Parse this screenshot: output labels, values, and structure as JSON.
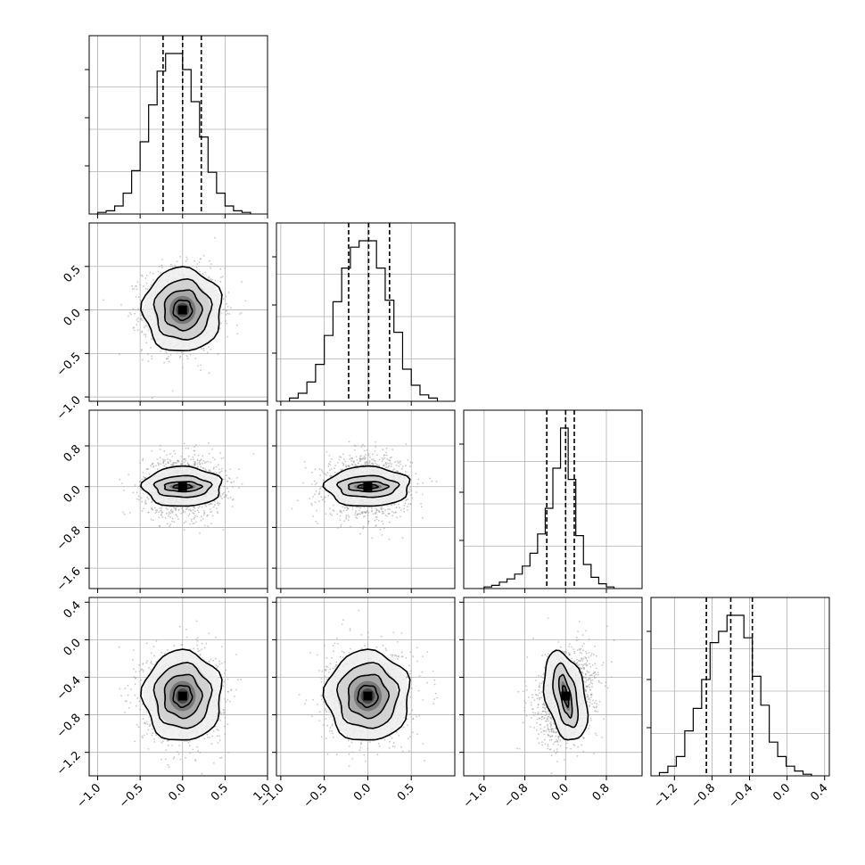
{
  "chart_data": {
    "type": "corner",
    "grid": true,
    "parameters": [
      "",
      "",
      "",
      ""
    ],
    "marginals": [
      {
        "range": [
          -1.1,
          1.0
        ],
        "quantiles": [
          -0.23,
          0.0,
          0.22
        ],
        "bin_edges": [
          -1.0,
          -0.9,
          -0.8,
          -0.7,
          -0.6,
          -0.5,
          -0.4,
          -0.3,
          -0.2,
          -0.1,
          0.0,
          0.1,
          0.2,
          0.3,
          0.4,
          0.5,
          0.6,
          0.7,
          0.8
        ],
        "relative_heights": [
          0.01,
          0.02,
          0.05,
          0.13,
          0.27,
          0.45,
          0.68,
          0.89,
          1.0,
          1.0,
          0.9,
          0.7,
          0.48,
          0.26,
          0.13,
          0.05,
          0.02,
          0.01
        ]
      },
      {
        "range": [
          -1.05,
          1.0
        ],
        "quantiles": [
          -0.22,
          0.01,
          0.25
        ],
        "bin_edges": [
          -0.9,
          -0.8,
          -0.7,
          -0.6,
          -0.5,
          -0.4,
          -0.3,
          -0.2,
          -0.1,
          0.0,
          0.1,
          0.2,
          0.3,
          0.4,
          0.5,
          0.6,
          0.7,
          0.8
        ],
        "relative_heights": [
          0.02,
          0.05,
          0.12,
          0.23,
          0.41,
          0.62,
          0.83,
          0.96,
          1.0,
          1.0,
          0.83,
          0.63,
          0.43,
          0.2,
          0.1,
          0.04,
          0.02
        ]
      },
      {
        "range": [
          -2.0,
          1.5
        ],
        "quantiles": [
          -0.37,
          0.0,
          0.17
        ],
        "bin_edges": [
          -1.6,
          -1.45,
          -1.3,
          -1.15,
          -1.0,
          -0.85,
          -0.7,
          -0.55,
          -0.4,
          -0.25,
          -0.1,
          0.05,
          0.2,
          0.35,
          0.5,
          0.65,
          0.8,
          0.95
        ],
        "relative_heights": [
          0.01,
          0.02,
          0.04,
          0.06,
          0.09,
          0.14,
          0.22,
          0.34,
          0.5,
          0.75,
          1.0,
          0.68,
          0.33,
          0.15,
          0.07,
          0.03,
          0.01
        ]
      },
      {
        "range": [
          -1.45,
          0.45
        ],
        "quantiles": [
          -0.86,
          -0.6,
          -0.37
        ],
        "bin_edges": [
          -1.36,
          -1.27,
          -1.18,
          -1.09,
          -1.0,
          -0.91,
          -0.82,
          -0.73,
          -0.64,
          -0.55,
          -0.46,
          -0.37,
          -0.28,
          -0.19,
          -0.1,
          -0.01,
          0.08,
          0.17,
          0.26
        ],
        "relative_heights": [
          0.02,
          0.06,
          0.12,
          0.28,
          0.42,
          0.6,
          0.83,
          0.9,
          1.0,
          1.0,
          0.86,
          0.62,
          0.44,
          0.21,
          0.12,
          0.06,
          0.03,
          0.01
        ]
      }
    ],
    "ticks": [
      {
        "values": [
          -1.0,
          -0.5,
          0.0,
          0.5,
          1.0
        ],
        "labels": [
          "−1.0",
          "−0.5",
          "0.0",
          "0.5",
          "1.0"
        ]
      },
      {
        "values": [
          -1.0,
          -0.5,
          0.0,
          0.5
        ],
        "labels": [
          "−1.0",
          "−0.5",
          "0.0",
          "0.5"
        ]
      },
      {
        "values": [
          -1.6,
          -0.8,
          0.0,
          0.8
        ],
        "labels": [
          "−1.6",
          "−0.8",
          "0.0",
          "0.8"
        ]
      },
      {
        "values": [
          -1.2,
          -0.8,
          -0.4,
          0.0,
          0.4
        ],
        "labels": [
          "−1.2",
          "−0.8",
          "−0.4",
          "0.0",
          "0.4"
        ]
      }
    ],
    "pairs": [
      {
        "i": 1,
        "j": 0,
        "mean": [
          0.0,
          0.0
        ],
        "sd": [
          0.22,
          0.23
        ],
        "rho": 0.0,
        "contour_sd": [
          [
            0.5,
            0.5
          ],
          [
            1.0,
            1.0
          ],
          [
            1.5,
            1.5
          ],
          [
            2.1,
            2.1
          ]
        ]
      },
      {
        "i": 2,
        "j": 0,
        "mean": [
          0.0,
          0.0
        ],
        "sd": [
          0.22,
          0.28
        ],
        "rho": 0.0,
        "contour_sd": [
          [
            0.5,
            0.15
          ],
          [
            1.0,
            0.35
          ],
          [
            1.5,
            0.75
          ],
          [
            2.1,
            1.4
          ]
        ]
      },
      {
        "i": 2,
        "j": 1,
        "mean": [
          0.0,
          0.0
        ],
        "sd": [
          0.23,
          0.28
        ],
        "rho": 0.0,
        "contour_sd": [
          [
            0.5,
            0.15
          ],
          [
            1.0,
            0.35
          ],
          [
            1.5,
            0.75
          ],
          [
            2.1,
            1.4
          ]
        ]
      },
      {
        "i": 3,
        "j": 0,
        "mean": [
          0.0,
          -0.6
        ],
        "sd": [
          0.22,
          0.23
        ],
        "rho": 0.0,
        "contour_sd": [
          [
            0.5,
            0.5
          ],
          [
            1.0,
            1.0
          ],
          [
            1.5,
            1.5
          ],
          [
            2.1,
            2.1
          ]
        ]
      },
      {
        "i": 3,
        "j": 1,
        "mean": [
          0.0,
          -0.6
        ],
        "sd": [
          0.23,
          0.23
        ],
        "rho": 0.0,
        "contour_sd": [
          [
            0.5,
            0.5
          ],
          [
            1.0,
            1.0
          ],
          [
            1.5,
            1.5
          ],
          [
            2.1,
            2.1
          ]
        ]
      },
      {
        "i": 3,
        "j": 2,
        "mean": [
          0.0,
          -0.6
        ],
        "sd": [
          0.28,
          0.23
        ],
        "rho": 0.25,
        "contour_sd": [
          [
            0.15,
            0.5
          ],
          [
            0.35,
            1.0
          ],
          [
            0.75,
            1.5
          ],
          [
            1.4,
            2.1
          ]
        ]
      }
    ],
    "colors": {
      "line": "#000000",
      "grid": "#b0b0b0",
      "samples": "#9a9a9a"
    }
  }
}
